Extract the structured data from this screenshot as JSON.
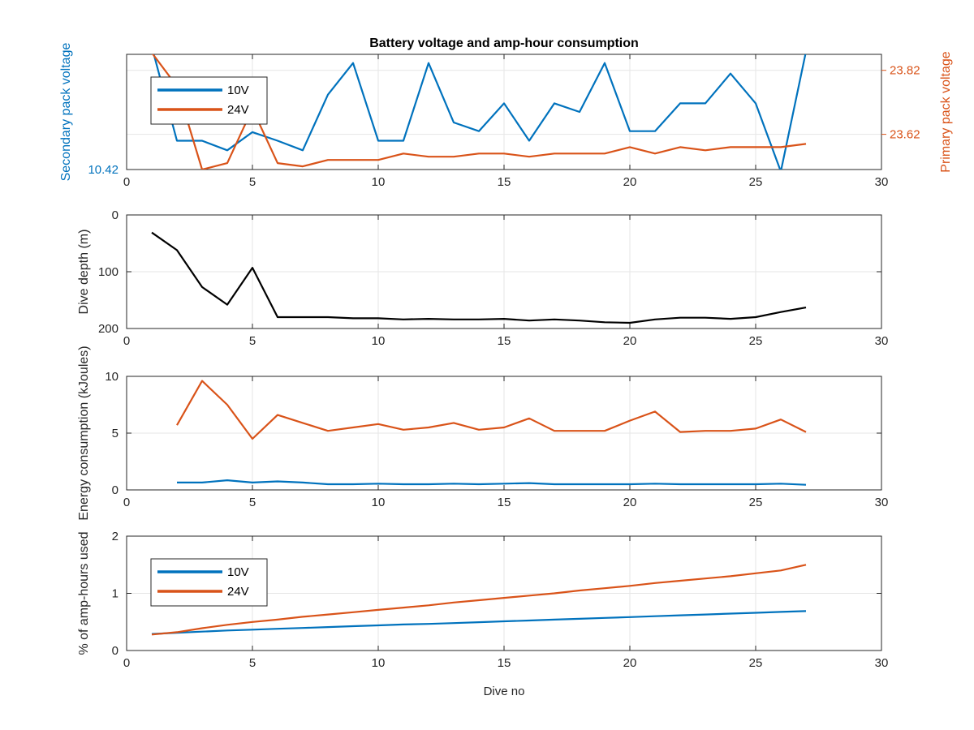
{
  "colors": {
    "blue": "#0072BD",
    "orange": "#D95319",
    "black": "#000000",
    "axis": "#262626",
    "grid": "#e6e6e6"
  },
  "chart_data": [
    {
      "type": "line",
      "title": "Battery voltage and amp-hour consumption",
      "xlabel": "",
      "ylabel": "Secondary pack voltage",
      "ylabel_right": "Primary pack voltage",
      "xlim": [
        0,
        30
      ],
      "x_ticks": [
        0,
        5,
        10,
        15,
        20,
        25,
        30
      ],
      "ylim_left": [
        10.42,
        10.444
      ],
      "y_ticks_left": [
        10.42
      ],
      "ylim_right": [
        23.51,
        23.87
      ],
      "y_ticks_right": [
        23.62,
        23.82
      ],
      "grid": true,
      "legend": "top-left",
      "x": [
        1,
        2,
        3,
        4,
        5,
        6,
        7,
        8,
        9,
        10,
        11,
        12,
        13,
        14,
        15,
        16,
        17,
        18,
        19,
        20,
        21,
        22,
        23,
        24,
        25,
        26,
        27
      ],
      "series": [
        {
          "name": "10V",
          "axis": "left",
          "color": "blue",
          "values": [
            10.4456,
            10.426,
            10.426,
            10.424,
            10.4278,
            10.426,
            10.424,
            10.4356,
            10.4422,
            10.426,
            10.426,
            10.4422,
            10.4298,
            10.428,
            10.4338,
            10.426,
            10.4338,
            10.432,
            10.4422,
            10.428,
            10.428,
            10.4338,
            10.4338,
            10.44,
            10.4338,
            10.4196,
            10.4446
          ]
        },
        {
          "name": "24V",
          "axis": "right",
          "color": "orange",
          "values": [
            23.875,
            23.77,
            23.51,
            23.53,
            23.7,
            23.53,
            23.52,
            23.54,
            23.54,
            23.54,
            23.56,
            23.55,
            23.55,
            23.56,
            23.56,
            23.55,
            23.56,
            23.56,
            23.56,
            23.58,
            23.56,
            23.58,
            23.57,
            23.58,
            23.58,
            23.58,
            23.59
          ]
        }
      ]
    },
    {
      "type": "line",
      "title": "",
      "xlabel": "",
      "ylabel": "Dive depth (m)",
      "xlim": [
        0,
        30
      ],
      "x_ticks": [
        0,
        5,
        10,
        15,
        20,
        25,
        30
      ],
      "ylim": [
        0,
        200
      ],
      "y_ticks": [
        0,
        100,
        200
      ],
      "y_reversed": true,
      "grid": true,
      "x": [
        1,
        2,
        3,
        4,
        5,
        6,
        7,
        8,
        9,
        10,
        11,
        12,
        13,
        14,
        15,
        16,
        17,
        18,
        19,
        20,
        21,
        22,
        23,
        24,
        25,
        26,
        27
      ],
      "series": [
        {
          "name": "",
          "color": "black",
          "values": [
            31,
            62,
            127,
            158,
            93,
            180,
            180,
            180,
            182,
            182,
            184,
            183,
            184,
            184,
            183,
            186,
            184,
            186,
            189,
            190,
            184,
            181,
            181,
            183,
            180,
            171,
            163
          ]
        }
      ]
    },
    {
      "type": "line",
      "title": "",
      "xlabel": "",
      "ylabel": "Energy consumption (kJoules)",
      "xlim": [
        0,
        30
      ],
      "x_ticks": [
        0,
        5,
        10,
        15,
        20,
        25,
        30
      ],
      "ylim": [
        0,
        10
      ],
      "y_ticks": [
        0,
        5,
        10
      ],
      "grid": true,
      "series": [
        {
          "name": "",
          "color": "orange",
          "x": [
            2,
            3,
            4,
            5,
            6,
            7,
            8,
            9,
            10,
            11,
            12,
            13,
            14,
            15,
            16,
            17,
            18,
            19,
            20,
            21,
            22,
            23,
            24,
            25,
            26,
            27
          ],
          "values": [
            5.7,
            9.6,
            7.5,
            4.5,
            6.6,
            5.9,
            5.2,
            5.5,
            5.8,
            5.3,
            5.5,
            5.9,
            5.3,
            5.5,
            6.3,
            5.2,
            5.2,
            5.2,
            6.1,
            6.9,
            5.1,
            5.2,
            5.2,
            5.4,
            6.2,
            5.1
          ]
        },
        {
          "name": "",
          "color": "blue",
          "x": [
            2,
            3,
            4,
            5,
            6,
            7,
            8,
            9,
            10,
            11,
            12,
            13,
            14,
            15,
            16,
            17,
            18,
            19,
            20,
            21,
            22,
            23,
            24,
            25,
            26,
            27
          ],
          "values": [
            0.65,
            0.65,
            0.85,
            0.65,
            0.75,
            0.65,
            0.5,
            0.5,
            0.55,
            0.5,
            0.5,
            0.55,
            0.5,
            0.55,
            0.6,
            0.5,
            0.5,
            0.5,
            0.5,
            0.55,
            0.5,
            0.5,
            0.5,
            0.5,
            0.55,
            0.45
          ]
        }
      ]
    },
    {
      "type": "line",
      "title": "",
      "xlabel": "Dive no",
      "ylabel": "% of amp-hours used",
      "xlim": [
        0,
        30
      ],
      "x_ticks": [
        0,
        5,
        10,
        15,
        20,
        25,
        30
      ],
      "ylim": [
        0,
        2
      ],
      "y_ticks": [
        0,
        1,
        2
      ],
      "grid": true,
      "legend": "top-left",
      "x": [
        1,
        2,
        3,
        4,
        5,
        6,
        7,
        8,
        9,
        10,
        11,
        12,
        13,
        14,
        15,
        16,
        17,
        18,
        19,
        20,
        21,
        22,
        23,
        24,
        25,
        26,
        27
      ],
      "series": [
        {
          "name": "10V",
          "color": "blue",
          "values": [
            0.29,
            0.31,
            0.33,
            0.35,
            0.365,
            0.38,
            0.395,
            0.41,
            0.425,
            0.44,
            0.455,
            0.465,
            0.48,
            0.495,
            0.51,
            0.525,
            0.54,
            0.555,
            0.57,
            0.585,
            0.6,
            0.615,
            0.63,
            0.645,
            0.66,
            0.675,
            0.69
          ]
        },
        {
          "name": "24V",
          "color": "orange",
          "values": [
            0.28,
            0.32,
            0.39,
            0.45,
            0.5,
            0.54,
            0.59,
            0.63,
            0.67,
            0.71,
            0.75,
            0.79,
            0.84,
            0.88,
            0.92,
            0.96,
            1.0,
            1.05,
            1.09,
            1.13,
            1.18,
            1.22,
            1.26,
            1.3,
            1.35,
            1.4,
            1.5
          ]
        }
      ]
    }
  ]
}
